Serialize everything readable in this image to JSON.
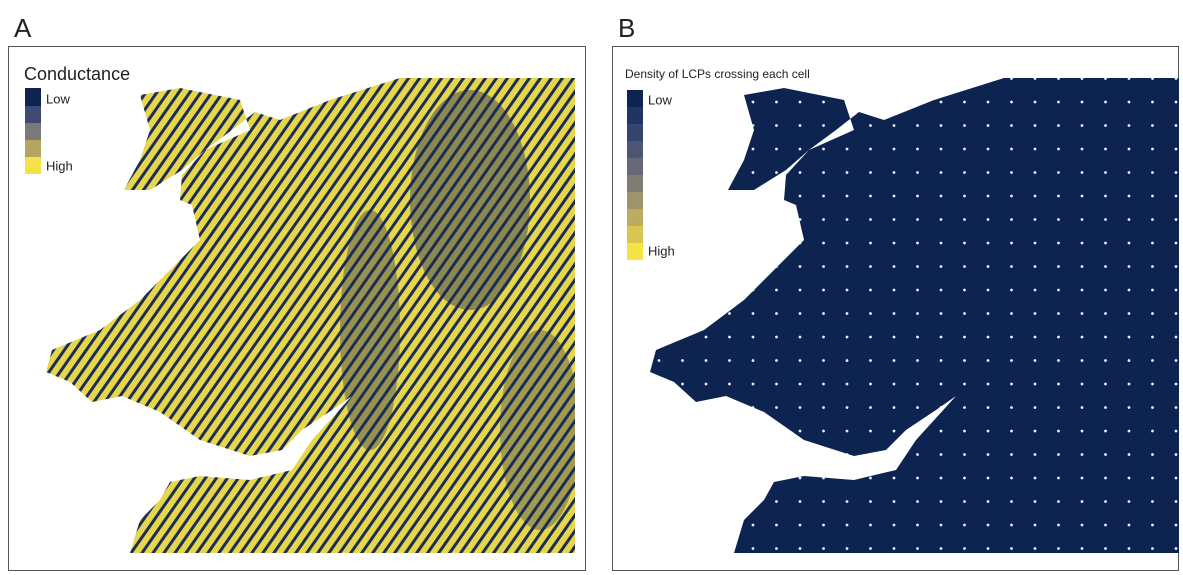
{
  "panels": [
    {
      "label": "A",
      "legend": {
        "title": "Conductance",
        "low": "Low",
        "high": "High"
      }
    },
    {
      "label": "B",
      "legend": {
        "title": "Density of LCPs crossing each cell",
        "low": "Low",
        "high": "High"
      }
    }
  ]
}
